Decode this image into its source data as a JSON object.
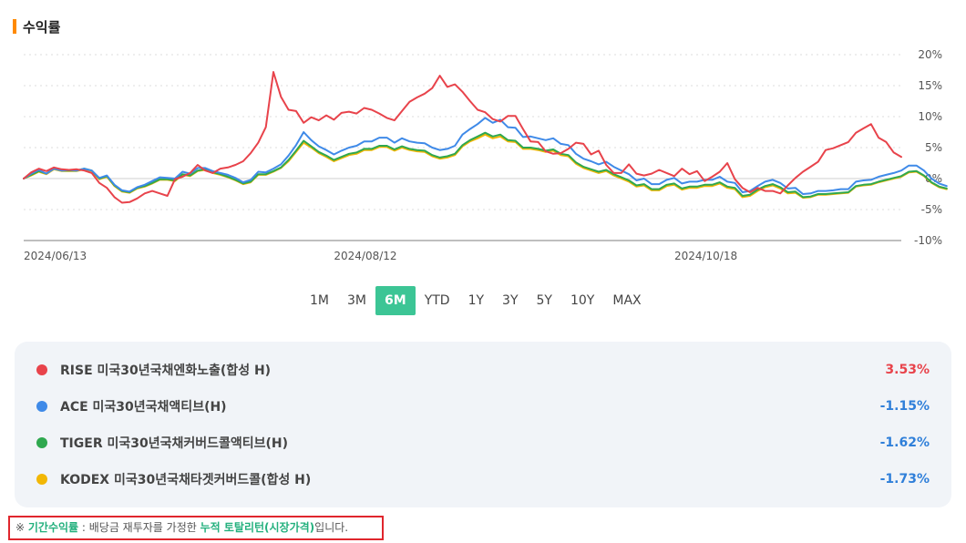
{
  "title": "수익률",
  "colors": {
    "accent": "#3cc595",
    "title_marker": "#ff8a00",
    "positive": "#e8434b",
    "negative": "#2f7fd9"
  },
  "range_tabs": [
    {
      "label": "1M",
      "active": false
    },
    {
      "label": "3M",
      "active": false
    },
    {
      "label": "6M",
      "active": true
    },
    {
      "label": "YTD",
      "active": false
    },
    {
      "label": "1Y",
      "active": false
    },
    {
      "label": "3Y",
      "active": false
    },
    {
      "label": "5Y",
      "active": false
    },
    {
      "label": "10Y",
      "active": false
    },
    {
      "label": "MAX",
      "active": false
    }
  ],
  "legend": [
    {
      "name": "RISE 미국30년국채엔화노출(합성 H)",
      "return": "3.53%",
      "dot_color": "#e8434b",
      "return_color": "#e8434b"
    },
    {
      "name": "ACE 미국30년국채액티브(H)",
      "return": "-1.15%",
      "dot_color": "#3f8ae8",
      "return_color": "#2f7fd9"
    },
    {
      "name": "TIGER 미국30년국채커버드콜액티브(H)",
      "return": "-1.62%",
      "dot_color": "#2fa84f",
      "return_color": "#2f7fd9"
    },
    {
      "name": "KODEX 미국30년국채타겟커버드콜(합성 H)",
      "return": "-1.73%",
      "dot_color": "#f2b705",
      "return_color": "#2f7fd9"
    }
  ],
  "note": {
    "prefix": "※ ",
    "term": "기간수익률",
    "middle": " : 배당금 재투자를 가정한 ",
    "highlight": "누적 토탈리턴(시장가격)",
    "suffix": "입니다."
  },
  "chart_data": {
    "type": "line",
    "xlabel": "",
    "ylabel": "",
    "ylim": [
      -10,
      20
    ],
    "y_ticks": [
      "20%",
      "15%",
      "10%",
      "5%",
      "0%",
      "-5%",
      "-10%"
    ],
    "y_tick_values": [
      20,
      15,
      10,
      5,
      0,
      -5,
      -10
    ],
    "x_tick_labels": [
      "2024/06/13",
      "2024/08/12",
      "2024/10/18"
    ],
    "x_tick_index": [
      0,
      41,
      86
    ],
    "grid": true,
    "series": [
      {
        "name": "RISE 미국30년국채엔화노출(합성 H)",
        "color": "#e8434b",
        "values": [
          0,
          1,
          1.6,
          1.2,
          1.8,
          1.5,
          1.4,
          1.5,
          1.3,
          0.9,
          -0.7,
          -1.5,
          -3,
          -3.9,
          -3.8,
          -3.2,
          -2.4,
          -2,
          -2.4,
          -2.8,
          -0.1,
          0.3,
          0.9,
          2.2,
          1.3,
          0.9,
          1.6,
          1.8,
          2.2,
          2.8,
          4.1,
          5.8,
          8.3,
          17.2,
          13.2,
          11.1,
          10.9,
          9,
          9.9,
          9.4,
          10.2,
          9.5,
          10.6,
          10.8,
          10.5,
          11.4,
          11.1,
          10.5,
          9.8,
          9.4,
          10.9,
          12.4,
          13.1,
          13.7,
          14.6,
          16.6,
          14.8,
          15.2,
          14,
          12.5,
          11.1,
          10.7,
          9.6,
          9.2,
          10.1,
          10.1,
          8,
          6,
          5.9,
          4.4,
          4,
          4.1,
          4.8,
          5.8,
          5.6,
          3.9,
          4.5,
          2.2,
          0.9,
          0.9,
          2.3,
          0.8,
          0.5,
          0.8,
          1.4,
          0.9,
          0.4,
          1.6,
          0.7,
          1.2,
          -0.4,
          0.3,
          1.1,
          2.5,
          -0.1,
          -1.5,
          -2.2,
          -1.5,
          -2,
          -2,
          -2.4,
          -1.1,
          0.1,
          1.1,
          1.9,
          2.7,
          4.6,
          4.9,
          5.4,
          5.9,
          7.4,
          8.1,
          8.8,
          6.6,
          5.9,
          4.2,
          3.5
        ]
      },
      {
        "name": "ACE 미국30년국채액티브(H)",
        "color": "#3f8ae8",
        "values": [
          0,
          0.8,
          1.4,
          0.8,
          1.6,
          1.3,
          1.4,
          1.3,
          1.6,
          1.3,
          0.1,
          0.5,
          -1,
          -1.9,
          -2.1,
          -1.4,
          -1,
          -0.4,
          0.2,
          0.1,
          0,
          1.1,
          0.8,
          1.7,
          1.7,
          1.2,
          0.9,
          0.6,
          0.1,
          -0.6,
          -0.2,
          1.1,
          1,
          1.6,
          2.3,
          3.7,
          5.4,
          7.5,
          6.2,
          5.2,
          4.6,
          3.9,
          4.5,
          5,
          5.3,
          6,
          6,
          6.6,
          6.6,
          5.8,
          6.5,
          6,
          5.8,
          5.7,
          5,
          4.6,
          4.8,
          5.3,
          7.1,
          8,
          8.8,
          9.8,
          9,
          9.5,
          8.3,
          8.2,
          6.7,
          6.8,
          6.5,
          6.2,
          6.5,
          5.6,
          5.4,
          4,
          3.2,
          2.8,
          2.3,
          2.7,
          1.9,
          1.3,
          0.7,
          -0.3,
          0,
          -0.9,
          -0.9,
          -0.2,
          0.1,
          -0.8,
          -0.5,
          -0.5,
          -0.2,
          -0.2,
          0.3,
          -0.5,
          -0.7,
          -2.2,
          -2,
          -1.2,
          -0.5,
          -0.2,
          -0.7,
          -1.6,
          -1.5,
          -2.5,
          -2.4,
          -2,
          -2,
          -1.9,
          -1.7,
          -1.7,
          -0.5,
          -0.3,
          -0.2,
          0.3,
          0.6,
          0.9,
          1.3,
          2.1,
          2.1,
          1.3,
          0,
          -0.8,
          -1.2
        ]
      },
      {
        "name": "TIGER 미국30년국채커버드콜액티브(H)",
        "color": "#2fa84f",
        "values": [
          0,
          0.6,
          1.2,
          0.8,
          1.6,
          1.3,
          1.3,
          1.3,
          1.6,
          1.3,
          0,
          0.4,
          -1.1,
          -2,
          -2.2,
          -1.5,
          -1.2,
          -0.7,
          -0.1,
          -0.1,
          -0.3,
          0.7,
          0.5,
          1.3,
          1.5,
          1,
          0.7,
          0.3,
          -0.2,
          -0.8,
          -0.5,
          0.7,
          0.7,
          1.2,
          1.8,
          3,
          4.5,
          6.1,
          5.2,
          4.3,
          3.7,
          3,
          3.5,
          4,
          4.2,
          4.8,
          4.8,
          5.3,
          5.3,
          4.7,
          5.2,
          4.8,
          4.6,
          4.5,
          3.8,
          3.4,
          3.6,
          4,
          5.4,
          6.2,
          6.8,
          7.4,
          6.8,
          7.1,
          6.2,
          6.1,
          5,
          5,
          4.8,
          4.5,
          4.7,
          4,
          3.8,
          2.6,
          1.9,
          1.5,
          1.1,
          1.4,
          0.7,
          0.2,
          -0.3,
          -1.1,
          -0.9,
          -1.7,
          -1.7,
          -1,
          -0.8,
          -1.6,
          -1.3,
          -1.3,
          -1,
          -1,
          -0.6,
          -1.3,
          -1.5,
          -2.8,
          -2.6,
          -1.8,
          -1.2,
          -0.9,
          -1.4,
          -2.2,
          -2.1,
          -3,
          -2.9,
          -2.5,
          -2.5,
          -2.4,
          -2.3,
          -2.2,
          -1.2,
          -1,
          -0.9,
          -0.5,
          -0.2,
          0.1,
          0.4,
          1.1,
          1.2,
          0.5,
          -0.6,
          -1.3,
          -1.6
        ]
      },
      {
        "name": "KODEX 미국30년국채타겟커버드콜(합성 H)",
        "color": "#f2b705",
        "values": [
          0,
          0.5,
          1.1,
          0.7,
          1.5,
          1.2,
          1.2,
          1.2,
          1.5,
          1.2,
          -0.1,
          0.3,
          -1.2,
          -2.1,
          -2.3,
          -1.6,
          -1.3,
          -0.8,
          -0.2,
          -0.2,
          -0.4,
          0.6,
          0.4,
          1.2,
          1.4,
          0.9,
          0.6,
          0.2,
          -0.3,
          -0.9,
          -0.6,
          0.6,
          0.6,
          1.1,
          1.7,
          2.8,
          4.3,
          5.8,
          5,
          4.1,
          3.5,
          2.8,
          3.3,
          3.8,
          4,
          4.6,
          4.6,
          5.1,
          5.1,
          4.5,
          5,
          4.6,
          4.4,
          4.3,
          3.6,
          3.2,
          3.4,
          3.8,
          5.2,
          6,
          6.5,
          7.1,
          6.5,
          6.8,
          6,
          5.9,
          4.8,
          4.8,
          4.6,
          4.3,
          4.5,
          3.8,
          3.6,
          2.4,
          1.7,
          1.3,
          0.9,
          1.2,
          0.5,
          0,
          -0.5,
          -1.3,
          -1.1,
          -1.9,
          -1.9,
          -1.2,
          -1,
          -1.8,
          -1.5,
          -1.5,
          -1.2,
          -1.2,
          -0.8,
          -1.5,
          -1.7,
          -3,
          -2.8,
          -2,
          -1.4,
          -1.1,
          -1.6,
          -2.4,
          -2.3,
          -3.1,
          -3,
          -2.6,
          -2.6,
          -2.5,
          -2.4,
          -2.3,
          -1.3,
          -1.1,
          -1,
          -0.6,
          -0.3,
          0,
          0.3,
          1,
          1.1,
          0.4,
          -0.7,
          -1.4,
          -1.7
        ]
      }
    ]
  }
}
